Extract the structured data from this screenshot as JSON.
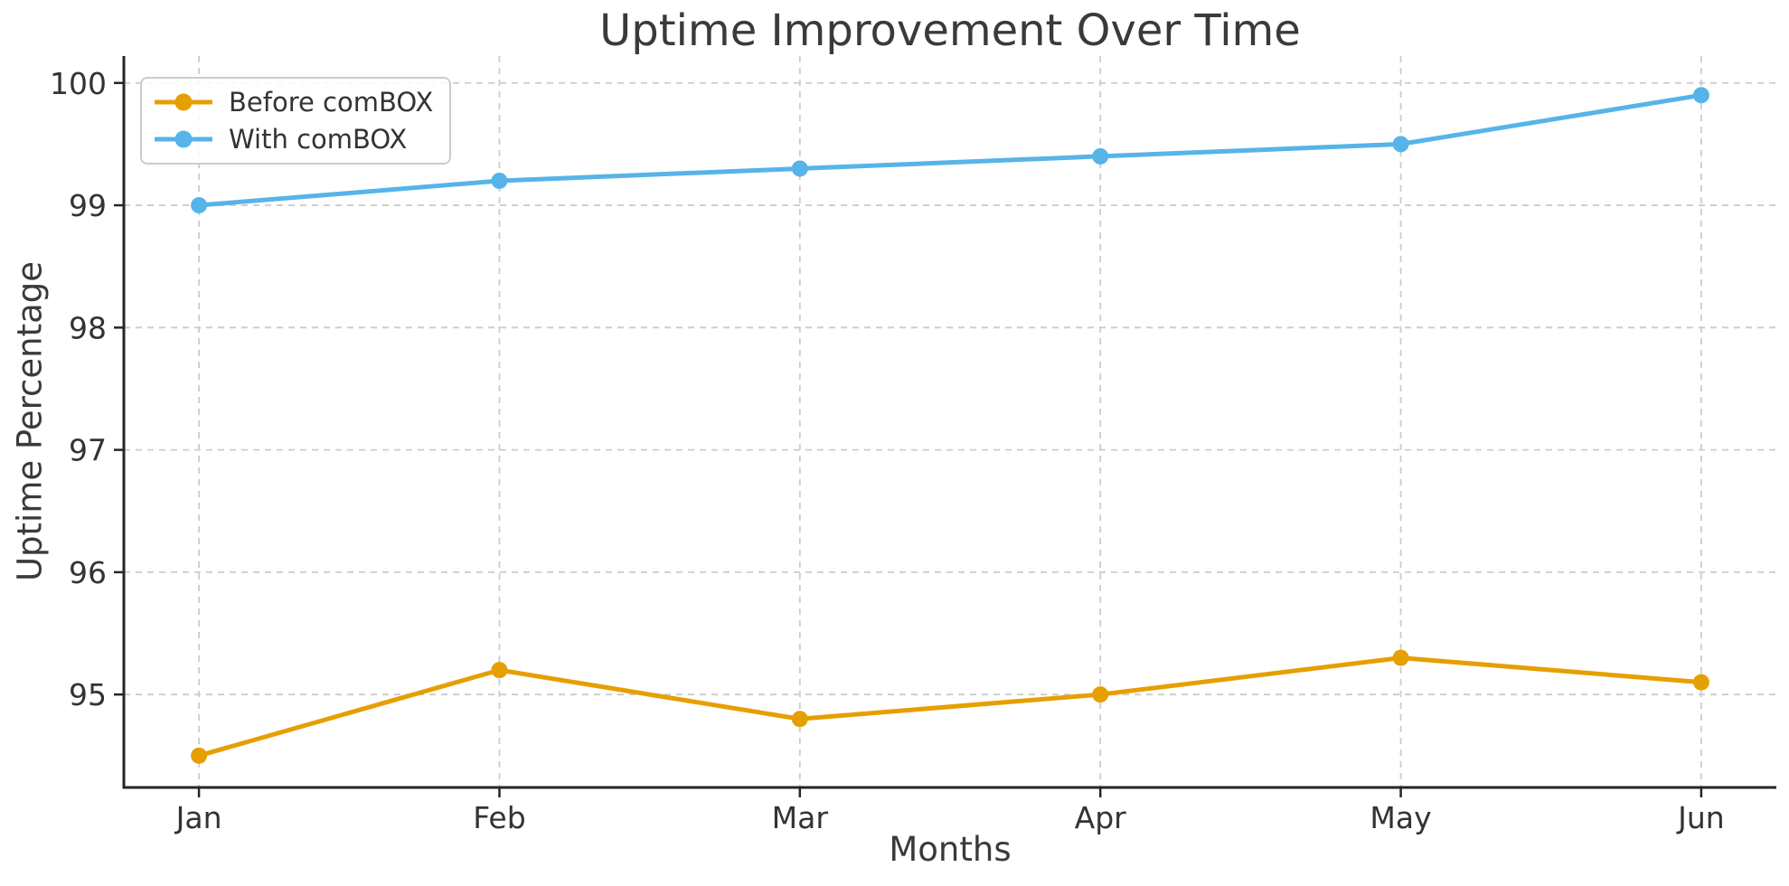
{
  "chart_data": {
    "type": "line",
    "title": "Uptime Improvement Over Time",
    "xlabel": "Months",
    "ylabel": "Uptime Percentage",
    "categories": [
      "Jan",
      "Feb",
      "Mar",
      "Apr",
      "May",
      "Jun"
    ],
    "series": [
      {
        "name": "Before comBOX",
        "color": "#E69F00",
        "values": [
          94.5,
          95.2,
          94.8,
          95.0,
          95.3,
          95.1
        ]
      },
      {
        "name": "With comBOX",
        "color": "#56B4E9",
        "values": [
          99.0,
          99.2,
          99.3,
          99.4,
          99.5,
          99.9
        ]
      }
    ],
    "yticks": [
      95,
      96,
      97,
      98,
      99,
      100
    ],
    "ylim": [
      94.24,
      100.22
    ],
    "xlim": [
      -0.25,
      5.25
    ],
    "grid": true,
    "grid_style": "dashed",
    "legend_position": "upper left"
  },
  "style_colors": {
    "grid": "#cccccc",
    "spine": "#262626",
    "tick_label": "#333333",
    "title_text": "#3a3a3a"
  }
}
